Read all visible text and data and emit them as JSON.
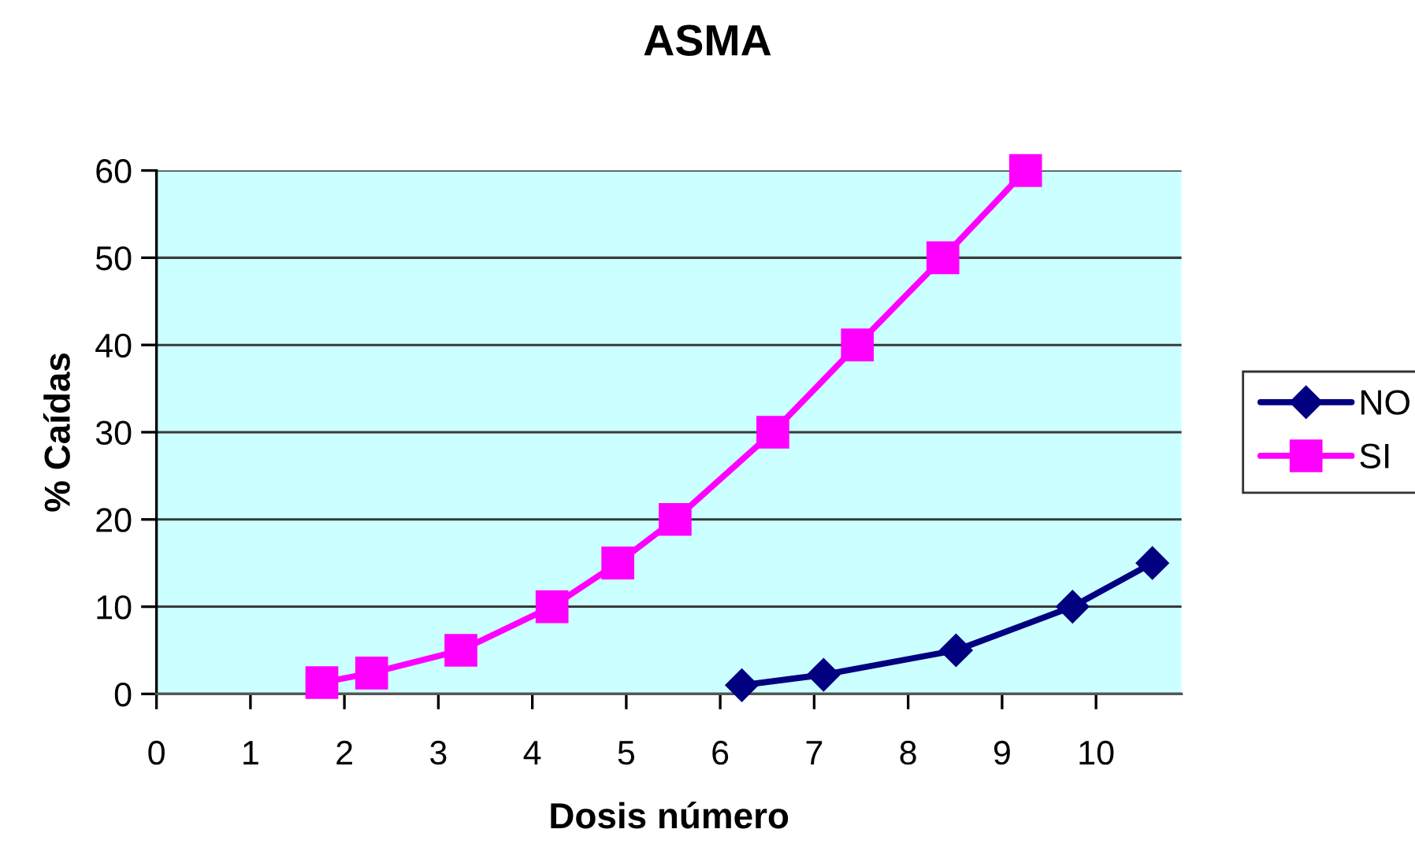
{
  "chart_data": {
    "type": "line",
    "title": "ASMA",
    "xlabel": "Dosis número",
    "ylabel": "% Caídas",
    "xlim": [
      0,
      10.91
    ],
    "ylim": [
      0,
      60
    ],
    "xticks": [
      0,
      1,
      2,
      3,
      4,
      5,
      6,
      7,
      8,
      9,
      10
    ],
    "yticks": [
      0,
      10,
      20,
      30,
      40,
      50,
      60
    ],
    "grid": "y",
    "legend": "right",
    "line_style": "solid",
    "series": [
      {
        "name": "NO",
        "color": "#000080",
        "marker": "diamond",
        "x": [
          6.23,
          7.1,
          8.51,
          9.75,
          10.6
        ],
        "values": [
          1.0,
          2.2,
          5,
          10,
          15
        ]
      },
      {
        "name": "SI",
        "color": "#ff00ff",
        "marker": "square",
        "x": [
          1.76,
          2.29,
          3.24,
          4.21,
          4.91,
          5.52,
          6.56,
          7.46,
          8.37,
          9.25
        ],
        "values": [
          1.3,
          2.4,
          5,
          10,
          15,
          20,
          30,
          40,
          50,
          60
        ]
      }
    ]
  }
}
